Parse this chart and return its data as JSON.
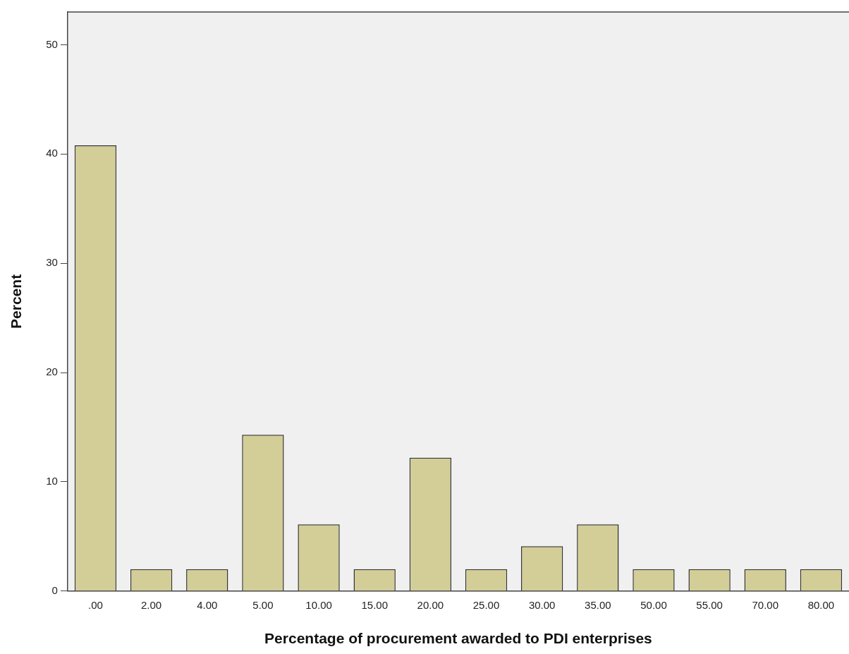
{
  "chart_data": {
    "type": "bar",
    "xlabel": "Percentage of procurement awarded to PDI enterprises",
    "ylabel": "Percent",
    "categories": [
      ".00",
      "2.00",
      "4.00",
      "5.00",
      "10.00",
      "15.00",
      "20.00",
      "25.00",
      "30.00",
      "35.00",
      "50.00",
      "55.00",
      "70.00",
      "80.00"
    ],
    "values": [
      40.8,
      2.0,
      2.0,
      14.3,
      6.1,
      2.0,
      12.2,
      2.0,
      4.1,
      6.1,
      2.0,
      2.0,
      2.0,
      2.0
    ],
    "color": "#d3ce97",
    "ylim": [
      0,
      53
    ],
    "yticks": [
      0,
      10,
      20,
      30,
      40,
      50
    ],
    "grid": false,
    "legend": false
  }
}
